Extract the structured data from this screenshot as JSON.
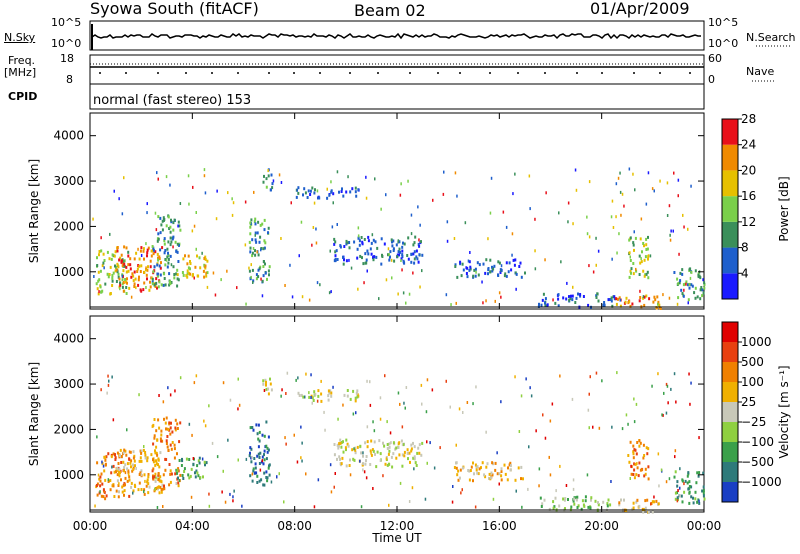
{
  "header": {
    "title": "Syowa South (fitACF)",
    "beam": "Beam 02",
    "date": "01/Apr/2009"
  },
  "panels": {
    "nsky": {
      "left_label": "N.Sky",
      "right_label": "N.Search",
      "tick_top": "10^5",
      "tick_bottom": "10^0"
    },
    "freq": {
      "left_label_1": "Freq.",
      "left_label_2": "[MHz]",
      "tick_top": "18",
      "tick_bottom": "8",
      "right_tick_top": "60",
      "right_tick_bottom": "0",
      "right_label": "Nave"
    },
    "cpid": {
      "label": "CPID",
      "mode": "normal (fast stereo) 153"
    }
  },
  "chart_data": [
    {
      "type": "heatmap",
      "name": "power",
      "ylabel": "Slant Range [km]",
      "xlabel": "Time UT",
      "ylim": [
        180,
        4500
      ],
      "xlim": [
        0,
        24
      ],
      "yticks": [
        "1000",
        "2000",
        "3000",
        "4000"
      ],
      "xticks": [
        "00:00",
        "04:00",
        "08:00",
        "12:00",
        "16:00",
        "20:00",
        "00:00"
      ],
      "colorbar": {
        "label": "Power [dB]",
        "ticks": [
          "4",
          "8",
          "12",
          "16",
          "20",
          "24",
          "28"
        ],
        "colors": [
          "#1a1aff",
          "#1e5fcc",
          "#3a8f5a",
          "#7ad04a",
          "#e6c000",
          "#f08a00",
          "#e8101a"
        ]
      },
      "bands": [
        {
          "t0": 0.2,
          "t1": 1.5,
          "r0": 500,
          "r1": 1500,
          "level": 3
        },
        {
          "t0": 1.0,
          "t1": 2.8,
          "r0": 600,
          "r1": 1600,
          "level": 5
        },
        {
          "t0": 2.4,
          "t1": 3.5,
          "r0": 700,
          "r1": 2300,
          "level": 2
        },
        {
          "t0": 3.3,
          "t1": 4.6,
          "r0": 900,
          "r1": 1400,
          "level": 4
        },
        {
          "t0": 6.2,
          "t1": 7.0,
          "r0": 800,
          "r1": 2200,
          "level": 2
        },
        {
          "t0": 6.7,
          "t1": 7.1,
          "r0": 2800,
          "r1": 3300,
          "level": 2
        },
        {
          "t0": 9.5,
          "t1": 13.0,
          "r0": 1200,
          "r1": 1800,
          "level": 1
        },
        {
          "t0": 8.0,
          "t1": 10.5,
          "r0": 2650,
          "r1": 2900,
          "level": 1
        },
        {
          "t0": 14.2,
          "t1": 17.0,
          "r0": 900,
          "r1": 1300,
          "level": 1
        },
        {
          "t0": 17.5,
          "t1": 20.5,
          "r0": 250,
          "r1": 550,
          "level": 1
        },
        {
          "t0": 20.5,
          "t1": 22.3,
          "r0": 200,
          "r1": 500,
          "level": 5
        },
        {
          "t0": 21.0,
          "t1": 21.8,
          "r0": 900,
          "r1": 1800,
          "level": 3
        },
        {
          "t0": 22.8,
          "t1": 24.0,
          "r0": 400,
          "r1": 1100,
          "level": 2
        }
      ]
    },
    {
      "type": "heatmap",
      "name": "velocity",
      "ylabel": "Slant Range [km]",
      "xlabel": "Time UT",
      "ylim": [
        180,
        4500
      ],
      "xlim": [
        0,
        24
      ],
      "yticks": [
        "1000",
        "2000",
        "3000",
        "4000"
      ],
      "xticks": [
        "00:00",
        "04:00",
        "08:00",
        "12:00",
        "16:00",
        "20:00",
        "00:00"
      ],
      "colorbar": {
        "label": "Velocity [m s⁻¹]",
        "ticks": [
          "1000",
          "500",
          "100",
          "25",
          "−25",
          "−100",
          "−500",
          "−1000"
        ],
        "colors": [
          "#1a3fc4",
          "#2e7a7a",
          "#3aa04a",
          "#8fd040",
          "#c8c8b8",
          "#f0b000",
          "#f08000",
          "#e84010",
          "#e00000"
        ]
      },
      "bands": [
        {
          "t0": 0.2,
          "t1": 1.5,
          "r0": 500,
          "r1": 1500,
          "level": 6
        },
        {
          "t0": 1.0,
          "t1": 2.8,
          "r0": 600,
          "r1": 1600,
          "level": 5
        },
        {
          "t0": 2.4,
          "t1": 3.5,
          "r0": 700,
          "r1": 2300,
          "level": 6
        },
        {
          "t0": 3.3,
          "t1": 4.6,
          "r0": 900,
          "r1": 1400,
          "level": 2
        },
        {
          "t0": 6.2,
          "t1": 7.0,
          "r0": 800,
          "r1": 2200,
          "level": 1
        },
        {
          "t0": 6.7,
          "t1": 7.1,
          "r0": 2800,
          "r1": 3300,
          "level": 4
        },
        {
          "t0": 9.5,
          "t1": 13.0,
          "r0": 1200,
          "r1": 1800,
          "level": 4
        },
        {
          "t0": 8.0,
          "t1": 10.5,
          "r0": 2650,
          "r1": 2900,
          "level": 4
        },
        {
          "t0": 14.2,
          "t1": 17.0,
          "r0": 900,
          "r1": 1300,
          "level": 5
        },
        {
          "t0": 17.5,
          "t1": 20.5,
          "r0": 250,
          "r1": 550,
          "level": 3
        },
        {
          "t0": 20.5,
          "t1": 22.3,
          "r0": 200,
          "r1": 500,
          "level": 5
        },
        {
          "t0": 21.0,
          "t1": 21.8,
          "r0": 900,
          "r1": 1800,
          "level": 6
        },
        {
          "t0": 22.8,
          "t1": 24.0,
          "r0": 400,
          "r1": 1100,
          "level": 2
        }
      ]
    }
  ]
}
